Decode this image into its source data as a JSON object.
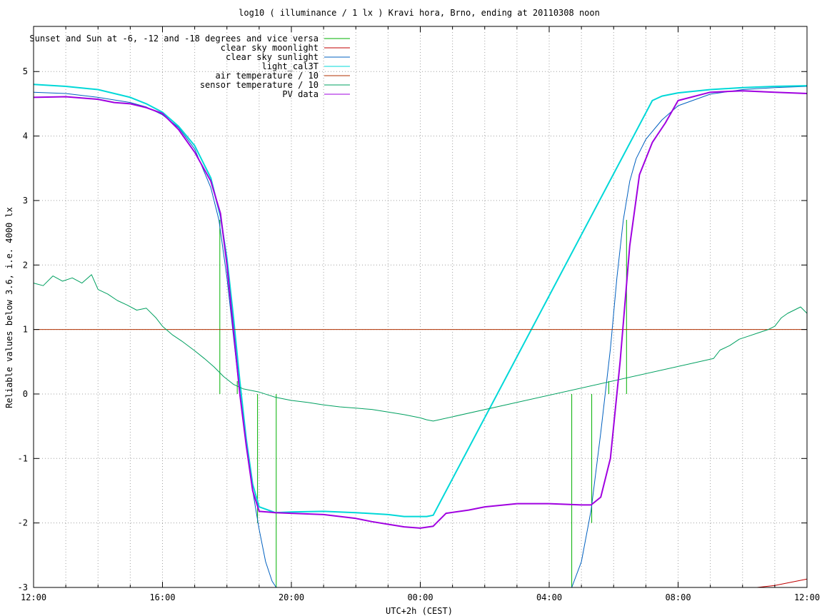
{
  "chart_data": {
    "type": "line",
    "title": "log10 ( illuminance / 1 lx ) Kravi hora, Brno, ending at 20110308 noon",
    "xlabel": "UTC+2h (CEST)",
    "ylabel": "Reliable values below 3.6, i.e. 4000 lx",
    "x_unit": "hours since 12:00",
    "xlim": [
      0,
      24
    ],
    "ylim": [
      -3,
      5.7
    ],
    "grid": true,
    "legend_position": "top-left",
    "x_ticks": [
      {
        "v": 0,
        "label": "12:00"
      },
      {
        "v": 4,
        "label": "16:00"
      },
      {
        "v": 8,
        "label": "20:00"
      },
      {
        "v": 12,
        "label": "00:00"
      },
      {
        "v": 16,
        "label": "04:00"
      },
      {
        "v": 20,
        "label": "08:00"
      },
      {
        "v": 24,
        "label": "12:00"
      }
    ],
    "x_minor_grid_step": 1,
    "y_ticks": [
      {
        "v": -3,
        "label": "-3"
      },
      {
        "v": -2,
        "label": "-2"
      },
      {
        "v": -1,
        "label": "-1"
      },
      {
        "v": 0,
        "label": "0"
      },
      {
        "v": 1,
        "label": "1"
      },
      {
        "v": 2,
        "label": "2"
      },
      {
        "v": 3,
        "label": "3"
      },
      {
        "v": 4,
        "label": "4"
      },
      {
        "v": 5,
        "label": "5"
      }
    ],
    "series": [
      {
        "name": "Sunset and Sun at -6, -12 and -18 degrees and vice versa",
        "color": "#00b000",
        "style": "vertical_markers",
        "markers": [
          {
            "x": 5.78,
            "y0": 0,
            "y1": 2.7
          },
          {
            "x": 6.32,
            "y0": 0,
            "y1": 0.2
          },
          {
            "x": 6.95,
            "y0": 0,
            "y1": -2.0
          },
          {
            "x": 7.53,
            "y0": 0,
            "y1": -3.0
          },
          {
            "x": 16.7,
            "y0": 0,
            "y1": -3.0
          },
          {
            "x": 17.32,
            "y0": 0,
            "y1": -2.0
          },
          {
            "x": 17.85,
            "y0": 0,
            "y1": 0.2
          },
          {
            "x": 18.4,
            "y0": 0,
            "y1": 2.7
          }
        ]
      },
      {
        "name": "clear sky moonlight",
        "color": "#c00000",
        "x": [
          22.45,
          23.0,
          23.5,
          24.0
        ],
        "y": [
          -3.0,
          -2.97,
          -2.92,
          -2.87
        ]
      },
      {
        "name": "clear sky sunlight",
        "color": "#0060c0",
        "x": [
          0,
          1,
          2,
          3,
          3.5,
          4,
          4.5,
          5,
          5.5,
          5.75,
          6.0,
          6.2,
          6.4,
          6.6,
          6.8,
          7.0,
          7.2,
          7.4,
          7.53,
          16.7,
          17.0,
          17.3,
          17.6,
          17.9,
          18.1,
          18.3,
          18.5,
          18.7,
          19.0,
          19.5,
          20.0,
          21.0,
          22.0,
          23.0,
          24.0
        ],
        "y": [
          4.68,
          4.66,
          4.6,
          4.52,
          4.45,
          4.33,
          4.13,
          3.8,
          3.2,
          2.7,
          1.8,
          0.9,
          0.0,
          -0.8,
          -1.5,
          -2.1,
          -2.6,
          -2.9,
          -3.0,
          -3.0,
          -2.6,
          -1.8,
          -0.6,
          0.7,
          1.8,
          2.7,
          3.3,
          3.65,
          3.95,
          4.25,
          4.47,
          4.65,
          4.72,
          4.75,
          4.77
        ]
      },
      {
        "name": "light_cal3T",
        "color": "#00d8d8",
        "x": [
          0,
          1,
          2,
          3,
          3.5,
          4,
          4.5,
          5,
          5.5,
          5.8,
          6.0,
          6.2,
          6.4,
          6.6,
          6.8,
          7.0,
          7.5,
          8,
          9,
          10,
          11,
          11.5,
          12,
          12.2,
          12.4,
          19.2,
          19.5,
          20.0,
          21.0,
          22.0,
          23.0,
          24.0
        ],
        "y": [
          4.8,
          4.77,
          4.72,
          4.6,
          4.5,
          4.37,
          4.15,
          3.85,
          3.35,
          2.75,
          2.1,
          1.2,
          0.2,
          -0.7,
          -1.4,
          -1.75,
          -1.84,
          -1.83,
          -1.82,
          -1.84,
          -1.87,
          -1.9,
          -1.9,
          -1.9,
          -1.88,
          4.55,
          4.62,
          4.67,
          4.72,
          4.75,
          4.77,
          4.78
        ]
      },
      {
        "name": "air temperature / 10",
        "color": "#b03000",
        "x": [
          0,
          24
        ],
        "y": [
          1.0,
          1.0
        ]
      },
      {
        "name": "sensor temperature / 10",
        "color": "#00a060",
        "x": [
          0,
          0.3,
          0.6,
          0.9,
          1.2,
          1.5,
          1.8,
          2.0,
          2.3,
          2.6,
          2.9,
          3.2,
          3.5,
          3.8,
          4.0,
          4.3,
          4.6,
          5.0,
          5.3,
          5.6,
          5.9,
          6.2,
          6.5,
          7.0,
          7.5,
          8.0,
          8.5,
          9.0,
          9.5,
          10.0,
          10.5,
          11.0,
          11.5,
          12.0,
          12.2,
          12.4,
          21.1,
          21.3,
          21.6,
          21.9,
          22.2,
          22.5,
          22.8,
          23.0,
          23.2,
          23.4,
          23.6,
          23.8,
          24.0
        ],
        "y": [
          1.72,
          1.68,
          1.83,
          1.75,
          1.8,
          1.72,
          1.85,
          1.62,
          1.55,
          1.45,
          1.38,
          1.3,
          1.33,
          1.18,
          1.05,
          0.92,
          0.82,
          0.67,
          0.55,
          0.42,
          0.27,
          0.15,
          0.08,
          0.03,
          -0.05,
          -0.1,
          -0.13,
          -0.17,
          -0.2,
          -0.22,
          -0.24,
          -0.28,
          -0.32,
          -0.37,
          -0.4,
          -0.42,
          0.55,
          0.68,
          0.75,
          0.85,
          0.9,
          0.95,
          1.0,
          1.05,
          1.18,
          1.25,
          1.3,
          1.35,
          1.25
        ]
      },
      {
        "name": "PV data",
        "color": "#a000e0",
        "x": [
          0,
          1,
          2,
          2.5,
          3,
          3.5,
          4,
          4.5,
          5,
          5.5,
          5.8,
          6.0,
          6.2,
          6.4,
          6.6,
          6.8,
          7.0,
          7.5,
          8,
          9,
          10,
          10.5,
          11,
          11.5,
          12,
          12.4,
          12.8,
          13.5,
          14,
          15,
          16,
          17,
          17.3,
          17.6,
          17.9,
          18.2,
          18.5,
          18.8,
          19.2,
          19.6,
          20.0,
          21,
          22,
          23,
          24
        ],
        "y": [
          4.6,
          4.61,
          4.57,
          4.52,
          4.5,
          4.44,
          4.35,
          4.1,
          3.75,
          3.3,
          2.8,
          2.0,
          1.0,
          0.0,
          -0.8,
          -1.5,
          -1.82,
          -1.84,
          -1.85,
          -1.87,
          -1.93,
          -1.98,
          -2.02,
          -2.06,
          -2.08,
          -2.05,
          -1.85,
          -1.8,
          -1.75,
          -1.7,
          -1.7,
          -1.72,
          -1.72,
          -1.6,
          -1.0,
          0.5,
          2.3,
          3.4,
          3.9,
          4.2,
          4.55,
          4.68,
          4.7,
          4.68,
          4.66
        ]
      }
    ]
  }
}
